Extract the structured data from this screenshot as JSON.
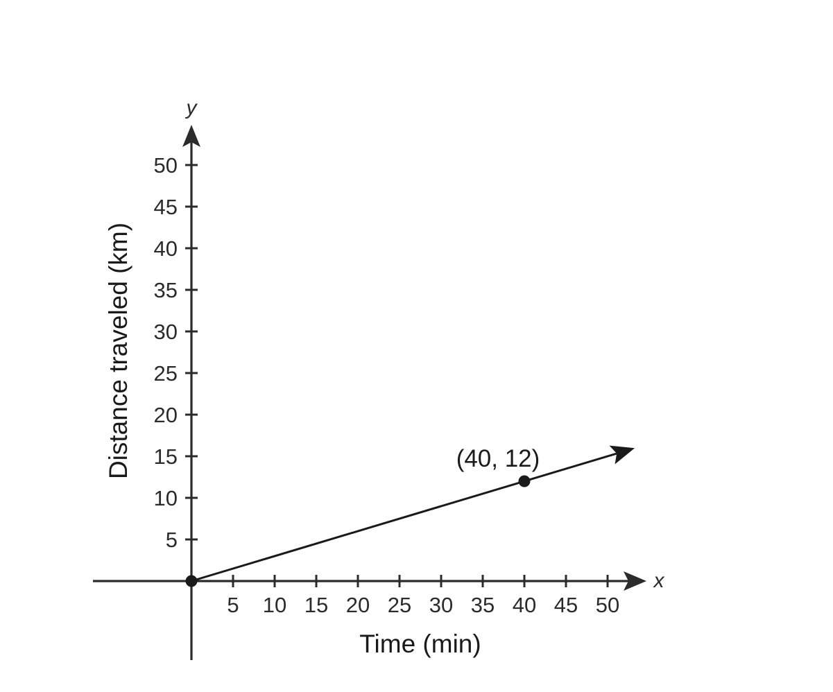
{
  "chart_data": {
    "type": "line",
    "xlabel": "Time (min)",
    "ylabel": "Distance traveled (km)",
    "x_axis_var": "x",
    "y_axis_var": "y",
    "xlim": [
      0,
      50
    ],
    "ylim": [
      0,
      50
    ],
    "x_ticks": [
      5,
      10,
      15,
      20,
      25,
      30,
      35,
      40,
      45,
      50
    ],
    "y_ticks": [
      5,
      10,
      15,
      20,
      25,
      30,
      35,
      40,
      45,
      50
    ],
    "grid": false,
    "series": [
      {
        "x": [
          0,
          51.5
        ],
        "y": [
          0,
          15.45
        ],
        "ray": true
      }
    ],
    "points": [
      {
        "x": 0,
        "y": 0,
        "label": ""
      },
      {
        "x": 40,
        "y": 12,
        "label": "(40, 12)"
      }
    ],
    "colors": {
      "axis": "#2b2b2b",
      "line": "#1a1a1a",
      "text": "#1a1a1a"
    }
  }
}
